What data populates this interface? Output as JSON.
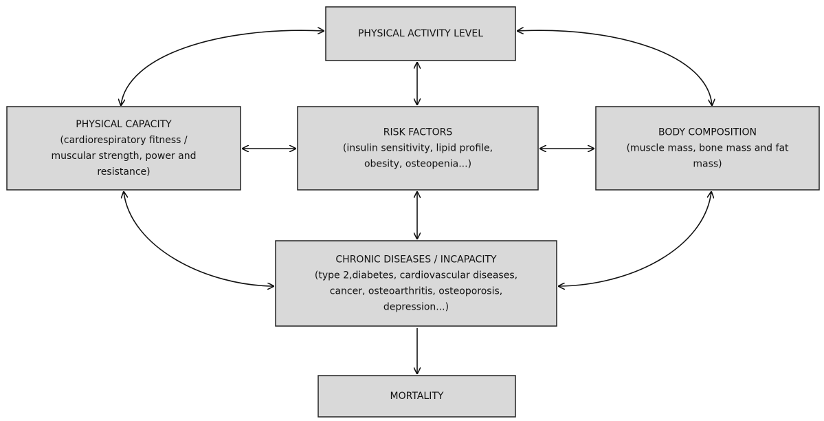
{
  "nodes": [
    {
      "title": "PHYSICAL ACTIVITY LEVEL",
      "lines": []
    },
    {
      "title": "PHYSICAL CAPACITY",
      "lines": [
        "(cardiorespiratory fitness /",
        "muscular strength, power and",
        "resistance)"
      ]
    },
    {
      "title": "RISK FACTORS",
      "lines": [
        "(insulin sensitivity, lipid profile,",
        "obesity, osteopenia...)"
      ]
    },
    {
      "title": "BODY COMPOSITION",
      "lines": [
        "(muscle mass, bone mass and fat",
        "mass)"
      ]
    },
    {
      "title": "CHRONIC DISEASES / INCAPACITY",
      "lines": [
        "(type 2,diabetes, cardiovascular diseases,",
        "cancer, osteoarthritis, osteoporosis,",
        "depression...)"
      ]
    },
    {
      "title": "MORTALITY",
      "lines": []
    }
  ]
}
